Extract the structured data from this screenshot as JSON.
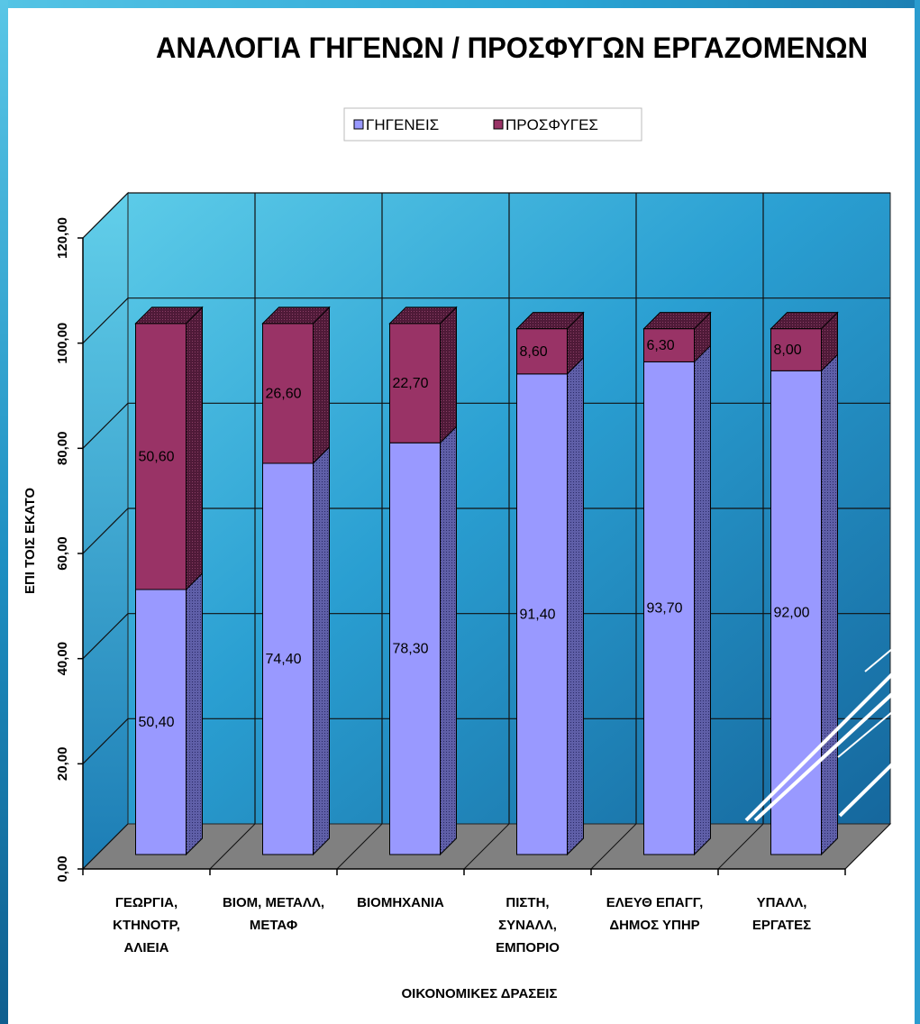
{
  "chart_data": {
    "type": "bar",
    "stacked": true,
    "three_d": true,
    "title": "ΑΝΑΛΟΓΙΑ ΓΗΓΕΝΩΝ / ΠΡΟΣΦΥΓΩΝ ΕΡΓΑΖΟΜΕΝΩΝ",
    "xlabel": "ΟΙΚΟΝΟΜΙΚΕΣ ΔΡΑΣΕΙΣ",
    "ylabel": "ΕΠΙ ΤΟΙΣ ΕΚΑΤΟ",
    "ylim": [
      0,
      120
    ],
    "yticks": [
      "0,00",
      "20,00",
      "40,00",
      "60,00",
      "80,00",
      "100,00",
      "120,00"
    ],
    "grid": true,
    "legend_position": "top",
    "categories": [
      [
        "ΓΕΩΡΓΙΑ,",
        "ΚΤΗΝΟΤΡ,",
        "ΑΛΙΕΙΑ"
      ],
      [
        "ΒΙΟΜ, ΜΕΤΑΛΛ,",
        "ΜΕΤΑΦ"
      ],
      [
        "ΒΙΟΜΗΧΑΝΙΑ"
      ],
      [
        "ΠΙΣΤΗ,",
        "ΣΥΝΑΛΛ,",
        "ΕΜΠΟΡΙΟ"
      ],
      [
        "ΕΛΕΥΘ ΕΠΑΓΓ,",
        "ΔΗΜΟΣ ΥΠΗΡ"
      ],
      [
        "ΥΠΑΛΛ,",
        "ΕΡΓΑΤΕΣ"
      ]
    ],
    "series": [
      {
        "name": "ΓΗΓΕΝΕΙΣ",
        "color": "#9999ff",
        "values": [
          50.4,
          74.4,
          78.3,
          91.4,
          93.7,
          92.0
        ],
        "labels": [
          "50,40",
          "74,40",
          "78,30",
          "91,40",
          "93,70",
          "92,00"
        ]
      },
      {
        "name": "ΠΡΟΣΦΥΓΕΣ",
        "color": "#993366",
        "values": [
          50.6,
          26.6,
          22.7,
          8.6,
          6.3,
          8.0
        ],
        "labels": [
          "50,60",
          "26,60",
          "22,70",
          "8,60",
          "6,30",
          "8,00"
        ]
      }
    ]
  }
}
